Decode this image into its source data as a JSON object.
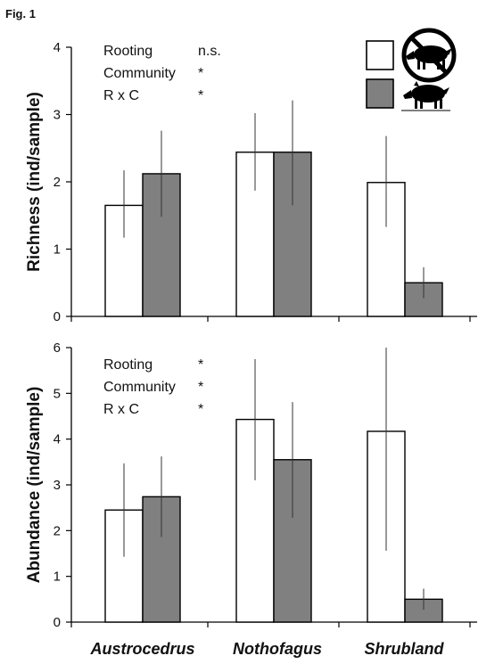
{
  "figure_label": "Fig. 1",
  "legend": {
    "items": [
      {
        "fill": "#ffffff",
        "icon": "crossed-out-boar-icon"
      },
      {
        "fill": "#808080",
        "icon": "boar-icon"
      }
    ]
  },
  "colors": {
    "series_open": "#ffffff",
    "series_filled": "#808080",
    "stroke": "#000000"
  },
  "chart_data": [
    {
      "type": "bar",
      "ylabel": "Richness (ind/sample)",
      "ylim": [
        0,
        4
      ],
      "yticks": [
        "0",
        "1",
        "2",
        "3",
        "4"
      ],
      "categories": [
        "Austrocedrus",
        "Nothofagus",
        "Shrubland"
      ],
      "show_category_labels": false,
      "series": [
        {
          "fill": "#ffffff",
          "values": [
            1.65,
            2.44,
            1.99
          ],
          "err_low": [
            1.17,
            1.87,
            1.33
          ],
          "err_high": [
            2.17,
            3.02,
            2.68
          ]
        },
        {
          "fill": "#808080",
          "values": [
            2.12,
            2.44,
            0.5
          ],
          "err_low": [
            1.48,
            1.65,
            0.27
          ],
          "err_high": [
            2.76,
            3.21,
            0.73
          ]
        }
      ],
      "stats": [
        {
          "label": "Rooting",
          "value": "n.s."
        },
        {
          "label": "Community",
          "value": "*"
        },
        {
          "label": "R x C",
          "value": "*"
        }
      ],
      "grid": false,
      "legend_position": "top-right"
    },
    {
      "type": "bar",
      "ylabel": "Abundance (ind/sample)",
      "ylim": [
        0,
        6
      ],
      "yticks": [
        "0",
        "1",
        "2",
        "3",
        "4",
        "5",
        "6"
      ],
      "categories": [
        "Austrocedrus",
        "Nothofagus",
        "Shrubland"
      ],
      "show_category_labels": true,
      "series": [
        {
          "fill": "#ffffff",
          "values": [
            2.45,
            4.43,
            4.17
          ],
          "err_low": [
            1.43,
            3.1,
            1.56
          ],
          "err_high": [
            3.47,
            5.75,
            6.0
          ]
        },
        {
          "fill": "#808080",
          "values": [
            2.74,
            3.55,
            0.5
          ],
          "err_low": [
            1.86,
            2.28,
            0.27
          ],
          "err_high": [
            3.62,
            4.81,
            0.73
          ]
        }
      ],
      "stats": [
        {
          "label": "Rooting",
          "value": "*"
        },
        {
          "label": "Community",
          "value": "*"
        },
        {
          "label": "R x C",
          "value": "*"
        }
      ],
      "grid": false
    }
  ]
}
